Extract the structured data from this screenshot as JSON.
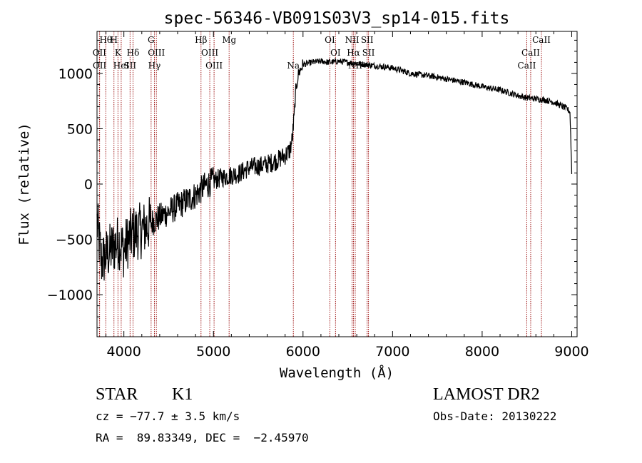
{
  "chart_data": {
    "type": "line",
    "title": "spec-56346-VB091S03V3_sp14-015.fits",
    "xlabel": "Wavelength (Å)",
    "ylabel": "Flux (relative)",
    "xlim": [
      3700,
      9060
    ],
    "ylim": [
      -1380,
      1380
    ],
    "xticks": [
      4000,
      5000,
      6000,
      7000,
      8000,
      9000
    ],
    "yticks": [
      -1000,
      -500,
      0,
      500,
      1000
    ],
    "xtick_labels": [
      "4000",
      "5000",
      "6000",
      "7000",
      "8000",
      "9000"
    ],
    "ytick_labels": [
      "−1000",
      "−500",
      "0",
      "500",
      "1000"
    ],
    "grid": false,
    "line_color": "#000000",
    "marker_color": "#a01818",
    "series": [
      {
        "x": [
          3700,
          3750,
          3800,
          3850,
          3900,
          3950,
          4000,
          4050,
          4100,
          4150,
          4200,
          4300,
          4400,
          4500,
          4600,
          4700,
          4800,
          4900,
          5000,
          5100,
          5200,
          5300,
          5400,
          5500,
          5600,
          5700,
          5800,
          5850,
          5880,
          5900,
          5920,
          5950,
          6000,
          6050,
          6100,
          6200,
          6300,
          6400,
          6500,
          6600,
          6700,
          6800,
          6900,
          7000,
          7200,
          7400,
          7600,
          7800,
          8000,
          8200,
          8400,
          8500,
          8600,
          8700,
          8800,
          8900,
          8950,
          8980,
          8990,
          9000
        ],
        "y": [
          -350,
          -700,
          -650,
          -600,
          -550,
          -520,
          -600,
          -500,
          -450,
          -430,
          -420,
          -350,
          -300,
          -250,
          -200,
          -150,
          -100,
          -20,
          30,
          60,
          80,
          100,
          150,
          160,
          180,
          210,
          260,
          300,
          400,
          600,
          850,
          1000,
          1080,
          1090,
          1100,
          1110,
          1100,
          1110,
          1100,
          1090,
          1080,
          1070,
          1060,
          1050,
          1000,
          980,
          950,
          920,
          880,
          850,
          800,
          780,
          770,
          760,
          740,
          700,
          680,
          650,
          400,
          100
        ]
      }
    ],
    "spectral_lines": [
      {
        "label": "Hθ",
        "x": 3798,
        "row": 0
      },
      {
        "label": "H",
        "x": 3889,
        "row": 0
      },
      {
        "label": "OII",
        "x": 3727,
        "row": 1
      },
      {
        "label": "K",
        "x": 3934,
        "row": 1
      },
      {
        "label": "Hδ",
        "x": 4102,
        "row": 1
      },
      {
        "label": "OII",
        "x": 3729,
        "row": 2
      },
      {
        "label": "HeI",
        "x": 3970,
        "row": 2
      },
      {
        "label": "SII",
        "x": 4069,
        "row": 2
      },
      {
        "label": "G",
        "x": 4304,
        "row": 0
      },
      {
        "label": "OIII",
        "x": 4363,
        "row": 1
      },
      {
        "label": "Hγ",
        "x": 4341,
        "row": 2
      },
      {
        "label": "Hβ",
        "x": 4861,
        "row": 0
      },
      {
        "label": "OIII",
        "x": 4959,
        "row": 1
      },
      {
        "label": "OIII",
        "x": 5007,
        "row": 2
      },
      {
        "label": "Mg",
        "x": 5175,
        "row": 0
      },
      {
        "label": "Na",
        "x": 5892,
        "row": 2
      },
      {
        "label": "OI",
        "x": 6300,
        "row": 0
      },
      {
        "label": "OI",
        "x": 6363,
        "row": 1
      },
      {
        "label": "NII",
        "x": 6548,
        "row": 0
      },
      {
        "label": "Hα",
        "x": 6563,
        "row": 1
      },
      {
        "label": "NII",
        "x": 6583,
        "row": 2
      },
      {
        "label": "SII",
        "x": 6716,
        "row": 0
      },
      {
        "label": "SII",
        "x": 6731,
        "row": 1
      },
      {
        "label": "CaII",
        "x": 8662,
        "row": 0
      },
      {
        "label": "CaII",
        "x": 8542,
        "row": 1
      },
      {
        "label": "CaII",
        "x": 8498,
        "row": 2
      }
    ]
  },
  "footer": {
    "object_class": "STAR",
    "subclass": "K1",
    "survey": "LAMOST DR2",
    "redshift": "cz = −77.7 ± 3.5 km/s",
    "obs_date": "Obs-Date: 20130222",
    "coords": "RA =  89.83349, DEC =  −2.45970"
  }
}
